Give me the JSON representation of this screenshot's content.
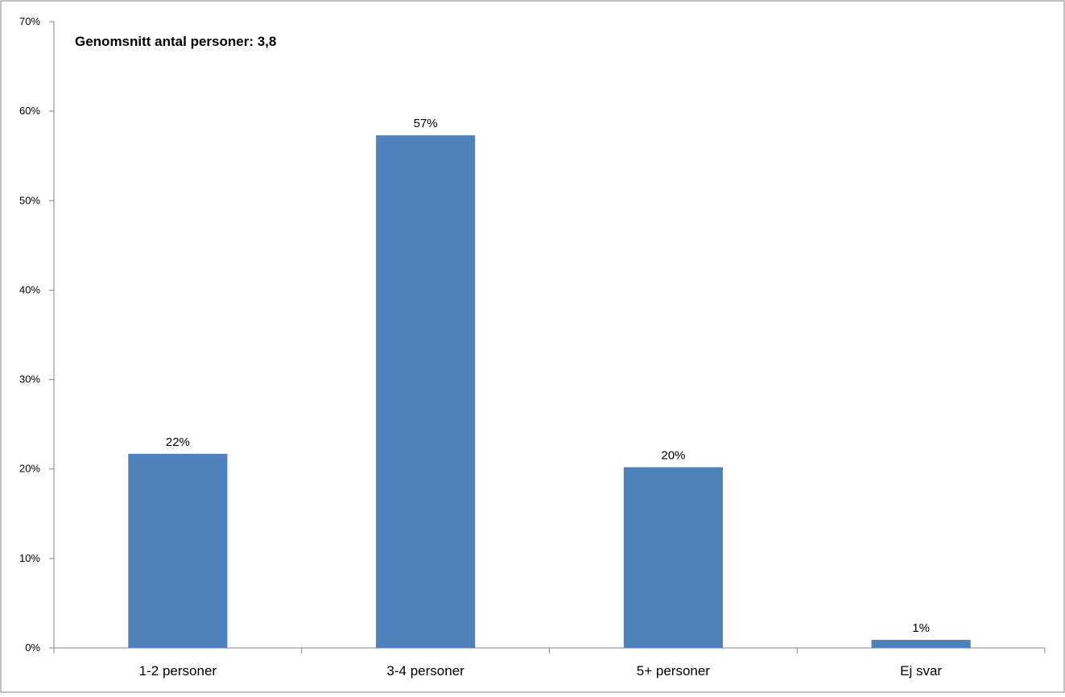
{
  "chart_data": {
    "type": "bar",
    "title": "",
    "annotation": "Genomsnitt antal personer: 3,8",
    "xlabel": "",
    "ylabel": "",
    "categories": [
      "1-2 personer",
      "3-4 personer",
      "5+ personer",
      "Ej svar"
    ],
    "values": [
      21.7,
      57.3,
      20.2,
      0.9
    ],
    "data_labels": [
      "22%",
      "57%",
      "20%",
      "1%"
    ],
    "ylim": [
      0,
      70
    ],
    "yticks": [
      0,
      10,
      20,
      30,
      40,
      50,
      60,
      70
    ],
    "ytick_labels": [
      "0%",
      "10%",
      "20%",
      "30%",
      "40%",
      "50%",
      "60%",
      "70%"
    ],
    "grid": false,
    "legend": "none",
    "colors": {
      "bar": "#4f81bd",
      "axis": "#868686",
      "border": "#868686"
    }
  }
}
